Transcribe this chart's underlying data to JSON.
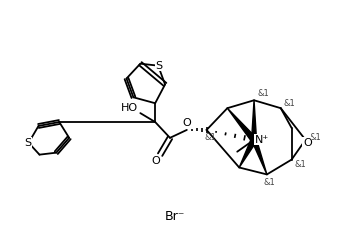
{
  "bg_color": "#ffffff",
  "line_color": "#000000",
  "lw": 1.3,
  "fig_width": 3.4,
  "fig_height": 2.47,
  "dpi": 100,
  "br_label": "Br⁻",
  "ho_label": "HO",
  "n_label": "N⁺",
  "o_label": "O",
  "s_label": "S",
  "and1_label": "&1"
}
